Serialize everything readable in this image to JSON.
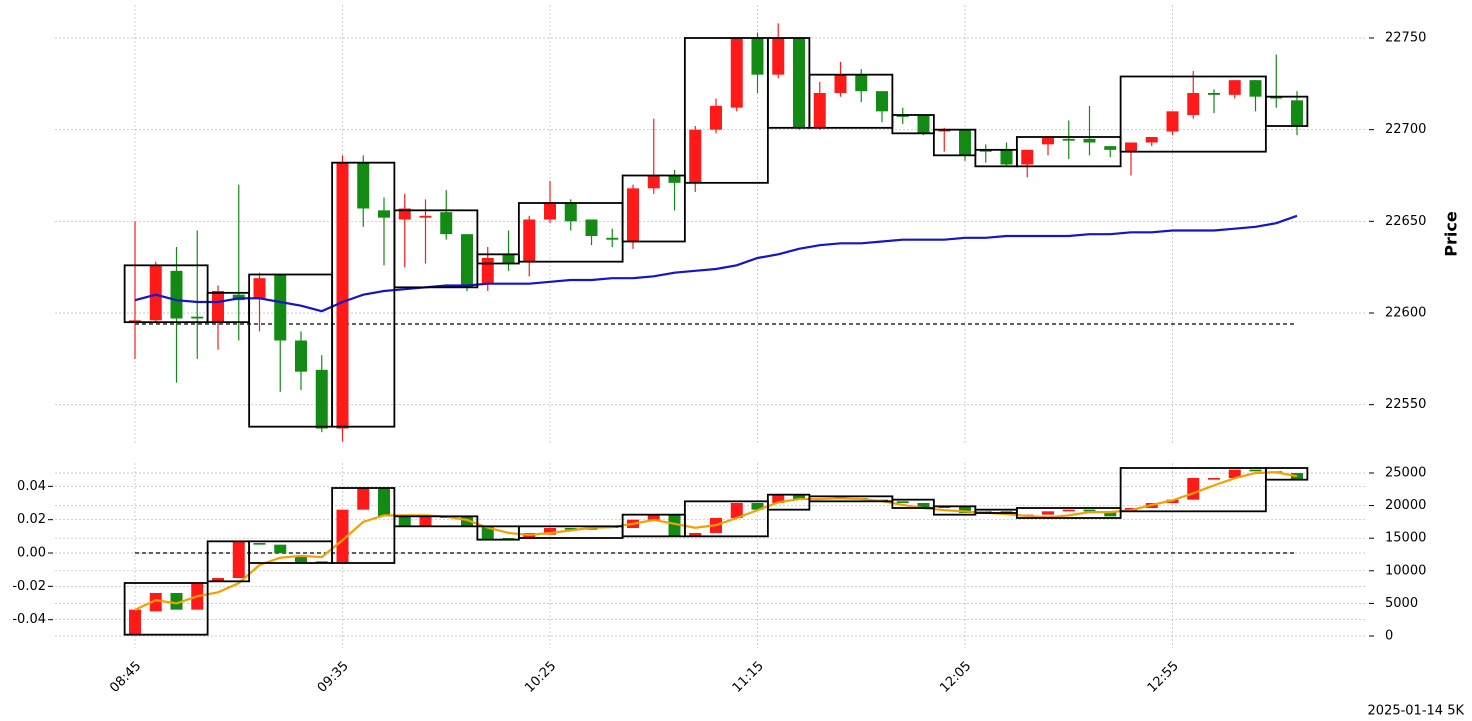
{
  "chart_data": [
    {
      "type": "candlestick",
      "ylabel": "Price",
      "yaxis": "right",
      "grid": true,
      "up_color": "#ff1a1a",
      "down_color": "#138a13",
      "categories": [
        "08:45",
        null,
        null,
        null,
        null,
        null,
        null,
        null,
        null,
        null,
        "09:35",
        null,
        null,
        null,
        null,
        null,
        null,
        null,
        null,
        null,
        "10:25",
        null,
        null,
        null,
        null,
        null,
        null,
        null,
        null,
        null,
        "11:15",
        null,
        null,
        null,
        null,
        null,
        null,
        null,
        null,
        null,
        "12:05",
        null,
        null,
        null,
        null,
        null,
        null,
        null,
        null,
        null,
        "12:55",
        null,
        null,
        null,
        null,
        null,
        null
      ],
      "open": [
        22595,
        22596,
        22623,
        22598,
        22595,
        22610,
        22608,
        22621,
        22585,
        22569,
        22537,
        22682,
        22656,
        22651,
        22652,
        22655,
        22643,
        22616,
        22632,
        22628,
        22651,
        22660,
        22651,
        22641,
        22639,
        22668,
        22675,
        22671,
        22700,
        22712,
        22750,
        22730,
        22750,
        22701,
        22720,
        22730,
        22721,
        22708,
        22708,
        22699,
        22700,
        22689,
        22689,
        22681,
        22692,
        22695,
        22695,
        22691,
        22688,
        22693,
        22699,
        22708,
        22720,
        22719,
        22727,
        22718,
        22716
      ],
      "high": [
        22650,
        22628,
        22636,
        22645,
        22615,
        22670,
        22622,
        22621,
        22590,
        22577,
        22686,
        22686,
        22663,
        22665,
        22662,
        22667,
        22643,
        22636,
        22645,
        22653,
        22672,
        22662,
        22651,
        22646,
        22670,
        22706,
        22678,
        22702,
        22717,
        22750,
        22753,
        22758,
        22750,
        22726,
        22737,
        22733,
        22721,
        22712,
        22708,
        22701,
        22700,
        22692,
        22693,
        22689,
        22696,
        22705,
        22713,
        22691,
        22693,
        22696,
        22710,
        22732,
        22722,
        22727,
        22727,
        22741,
        22721
      ],
      "low": [
        22575,
        22595,
        22562,
        22575,
        22580,
        22585,
        22590,
        22557,
        22558,
        22535,
        22530,
        22647,
        22626,
        22625,
        22627,
        22640,
        22612,
        22612,
        22623,
        22620,
        22649,
        22645,
        22637,
        22636,
        22635,
        22665,
        22656,
        22666,
        22698,
        22710,
        22720,
        22728,
        22700,
        22700,
        22718,
        22715,
        22704,
        22703,
        22697,
        22688,
        22683,
        22682,
        22680,
        22674,
        22686,
        22684,
        22686,
        22685,
        22675,
        22691,
        22697,
        22706,
        22709,
        22717,
        22710,
        22712,
        22697
      ],
      "close": [
        22596,
        22626,
        22597,
        22597,
        22612,
        22607,
        22619,
        22585,
        22568,
        22537,
        22682,
        22657,
        22652,
        22657,
        22653,
        22643,
        22614,
        22630,
        22627,
        22651,
        22660,
        22650,
        22642,
        22640,
        22668,
        22675,
        22671,
        22700,
        22713,
        22750,
        22730,
        22750,
        22701,
        22720,
        22730,
        22721,
        22710,
        22707,
        22698,
        22700,
        22686,
        22688,
        22681,
        22689,
        22696,
        22694,
        22693,
        22689,
        22693,
        22696,
        22710,
        22720,
        22719,
        22727,
        22718,
        22717,
        22702
      ],
      "series": [
        {
          "color": "#1414c8",
          "values": [
            22607,
            22610,
            22607,
            22606,
            22606,
            22608,
            22608,
            22606,
            22604,
            22601,
            22606,
            22610,
            22612,
            22613,
            22614,
            22615,
            22615,
            22616,
            22616,
            22616,
            22617,
            22618,
            22618,
            22619,
            22619,
            22620,
            22622,
            22623,
            22624,
            22626,
            22630,
            22632,
            22635,
            22637,
            22638,
            22638,
            22639,
            22640,
            22640,
            22640,
            22641,
            22641,
            22642,
            22642,
            22642,
            22642,
            22643,
            22643,
            22644,
            22644,
            22645,
            22645,
            22645,
            22646,
            22647,
            22649,
            22653
          ]
        }
      ],
      "hline": 22594,
      "boxes": [
        {
          "from": 0,
          "to": 3,
          "low": 22595,
          "high": 22626
        },
        {
          "from": 4,
          "to": 5,
          "low": 22595,
          "high": 22611
        },
        {
          "from": 6,
          "to": 9,
          "low": 22538,
          "high": 22621
        },
        {
          "from": 10,
          "to": 12,
          "low": 22538,
          "high": 22682
        },
        {
          "from": 13,
          "to": 16,
          "low": 22614,
          "high": 22656
        },
        {
          "from": 17,
          "to": 18,
          "low": 22627,
          "high": 22632
        },
        {
          "from": 19,
          "to": 23,
          "low": 22628,
          "high": 22660
        },
        {
          "from": 24,
          "to": 26,
          "low": 22639,
          "high": 22675
        },
        {
          "from": 27,
          "to": 30,
          "low": 22671,
          "high": 22750
        },
        {
          "from": 31,
          "to": 32,
          "low": 22701,
          "high": 22750
        },
        {
          "from": 33,
          "to": 36,
          "low": 22701,
          "high": 22730
        },
        {
          "from": 37,
          "to": 38,
          "low": 22698,
          "high": 22708
        },
        {
          "from": 39,
          "to": 40,
          "low": 22686,
          "high": 22700
        },
        {
          "from": 41,
          "to": 42,
          "low": 22680,
          "high": 22689
        },
        {
          "from": 43,
          "to": 47,
          "low": 22680,
          "high": 22696
        },
        {
          "from": 48,
          "to": 54,
          "low": 22688,
          "high": 22729
        },
        {
          "from": 55,
          "to": 56,
          "low": 22702,
          "high": 22718
        }
      ],
      "ylim": [
        22528,
        22768
      ],
      "yticks": [
        22550,
        22600,
        22650,
        22700,
        22750
      ]
    },
    {
      "type": "candlestick",
      "yaxis": "left",
      "grid": true,
      "up_color": "#ff1a1a",
      "down_color": "#138a13",
      "categories": [
        "08:45",
        null,
        null,
        null,
        null,
        null,
        null,
        null,
        null,
        null,
        "09:35",
        null,
        null,
        null,
        null,
        null,
        null,
        null,
        null,
        null,
        "10:25",
        null,
        null,
        null,
        null,
        null,
        null,
        null,
        null,
        null,
        "11:15",
        null,
        null,
        null,
        null,
        null,
        null,
        null,
        null,
        null,
        "12:05",
        null,
        null,
        null,
        null,
        null,
        null,
        null,
        null,
        null,
        "12:55",
        null,
        null,
        null,
        null,
        null,
        null
      ],
      "open": [
        -0.049,
        -0.035,
        -0.024,
        -0.034,
        -0.017,
        -0.015,
        0.006,
        0.005,
        -0.002,
        -0.005,
        -0.006,
        0.026,
        0.039,
        0.022,
        0.016,
        0.022,
        0.022,
        0.016,
        0.009,
        0.009,
        0.011,
        0.015,
        0.015,
        0.016,
        0.015,
        0.02,
        0.023,
        0.01,
        0.012,
        0.021,
        0.03,
        0.03,
        0.035,
        0.032,
        0.033,
        0.033,
        0.032,
        0.031,
        0.03,
        0.027,
        0.028,
        0.025,
        0.025,
        0.022,
        0.023,
        0.025,
        0.026,
        0.025,
        0.025,
        0.027,
        0.03,
        0.032,
        0.044,
        0.045,
        0.05,
        0.049,
        0.048
      ],
      "close": [
        -0.034,
        -0.024,
        -0.034,
        -0.018,
        -0.015,
        0.007,
        0.005,
        0,
        -0.006,
        -0.006,
        0.026,
        0.039,
        0.022,
        0.016,
        0.022,
        0.021,
        0.016,
        0.008,
        0.008,
        0.012,
        0.015,
        0.014,
        0.014,
        0.015,
        0.02,
        0.023,
        0.01,
        0.012,
        0.021,
        0.03,
        0.026,
        0.035,
        0.032,
        0.033,
        0.034,
        0.032,
        0.031,
        0.03,
        0.027,
        0.028,
        0.024,
        0.024,
        0.024,
        0.023,
        0.025,
        0.026,
        0.025,
        0.022,
        0.027,
        0.03,
        0.032,
        0.045,
        0.045,
        0.05,
        0.049,
        0.048,
        0.044
      ],
      "series": [
        {
          "color": "#f5a000",
          "axis": "y2",
          "values": [
            4000,
            5500,
            5000,
            6100,
            6700,
            8100,
            10900,
            12000,
            12300,
            12100,
            14700,
            17500,
            18500,
            18500,
            18500,
            18300,
            17800,
            16600,
            15800,
            15500,
            15800,
            16200,
            16600,
            16700,
            17200,
            17800,
            17200,
            16600,
            17000,
            18100,
            19300,
            20500,
            21000,
            21000,
            21100,
            21000,
            20700,
            20100,
            19600,
            19300,
            19100,
            18900,
            18700,
            18400,
            18200,
            18500,
            19000,
            19000,
            19300,
            20100,
            20800,
            21900,
            23100,
            24200,
            25000,
            25100,
            24500
          ]
        }
      ],
      "hline": 0,
      "boxes": [
        {
          "from": 0,
          "to": 3,
          "low": -0.049,
          "high": -0.018
        },
        {
          "from": 4,
          "to": 5,
          "low": -0.017,
          "high": 0.007
        },
        {
          "from": 6,
          "to": 9,
          "low": -0.006,
          "high": 0.007
        },
        {
          "from": 10,
          "to": 12,
          "low": -0.006,
          "high": 0.039
        },
        {
          "from": 13,
          "to": 16,
          "low": 0.016,
          "high": 0.022
        },
        {
          "from": 17,
          "to": 18,
          "low": 0.008,
          "high": 0.016
        },
        {
          "from": 19,
          "to": 23,
          "low": 0.009,
          "high": 0.016
        },
        {
          "from": 24,
          "to": 26,
          "low": 0.01,
          "high": 0.023
        },
        {
          "from": 27,
          "to": 30,
          "low": 0.01,
          "high": 0.031
        },
        {
          "from": 31,
          "to": 32,
          "low": 0.026,
          "high": 0.035
        },
        {
          "from": 33,
          "to": 36,
          "low": 0.031,
          "high": 0.034
        },
        {
          "from": 37,
          "to": 38,
          "low": 0.027,
          "high": 0.032
        },
        {
          "from": 39,
          "to": 40,
          "low": 0.023,
          "high": 0.028
        },
        {
          "from": 41,
          "to": 42,
          "low": 0.024,
          "high": 0.026
        },
        {
          "from": 43,
          "to": 47,
          "low": 0.021,
          "high": 0.027
        },
        {
          "from": 48,
          "to": 54,
          "low": 0.025,
          "high": 0.051
        },
        {
          "from": 55,
          "to": 56,
          "low": 0.044,
          "high": 0.051
        }
      ],
      "ylim": [
        -0.057,
        0.054
      ],
      "yticks": [
        -0.04,
        -0.02,
        {
          "value": 0,
          "label": "0.00"
        },
        0.02,
        0.04
      ],
      "y2lim": [
        -1840,
        26530
      ],
      "y2ticks": [
        0,
        5000,
        10000,
        15000,
        20000,
        25000
      ]
    }
  ],
  "footer": "2025-01-14 5K"
}
